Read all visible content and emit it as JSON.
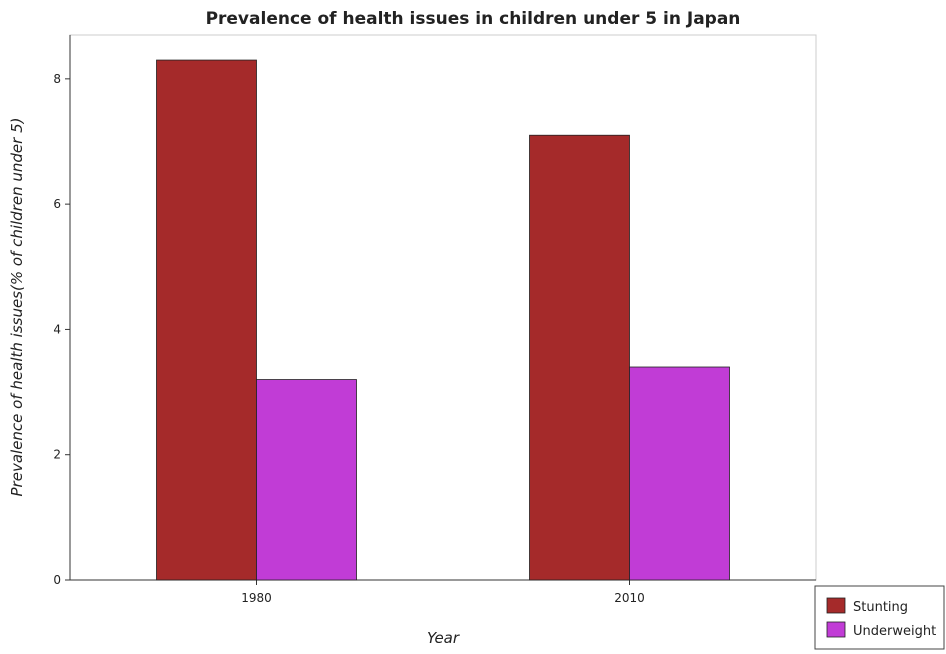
{
  "chart_data": {
    "type": "bar",
    "title": "Prevalence of health issues in children under 5 in Japan",
    "xlabel": "Year",
    "ylabel": "Prevalence of health issues(% of children under 5)",
    "categories": [
      "1980",
      "2010"
    ],
    "series": [
      {
        "name": "Stunting",
        "values": [
          8.3,
          7.1
        ],
        "color": "#a52a2a"
      },
      {
        "name": "Underweight",
        "values": [
          3.2,
          3.4
        ],
        "color": "#c13cd6"
      }
    ],
    "ylim": [
      0,
      8.7
    ],
    "yticks": [
      0,
      2,
      4,
      6,
      8
    ],
    "grid": false,
    "legend_position": "bottom-right"
  }
}
